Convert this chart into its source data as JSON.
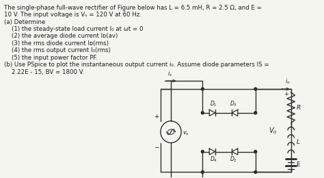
{
  "bg_color": "#f5f5f0",
  "text_color": "#1a1a1a",
  "circuit_color": "#2a2a2a",
  "line1": "The single-phase full-wave rectifier of Figure below has L = 6.5 mH, R = 2.5 Ω, and E =",
  "line2": "10 V. The input voltage is Vₛ = 120 V at 60 Hz.",
  "line3": "(a) Determine",
  "line4": "    (1) the steady-state load current I₀ at ωt = 0",
  "line5": "    (2) the average diode current Iᴅ(av)",
  "line6": "    (3) the rms diode current Iᴅ(rms)",
  "line7": "    (4) the rms output current I₀(rms)",
  "line8": "    (5) the input power factor PF.",
  "line9": "(b) Use PSpice to plot the instantaneous output current i₀. Assume diode parameters IS =",
  "line10": "    2.22E - 15, BV = 1800 V."
}
